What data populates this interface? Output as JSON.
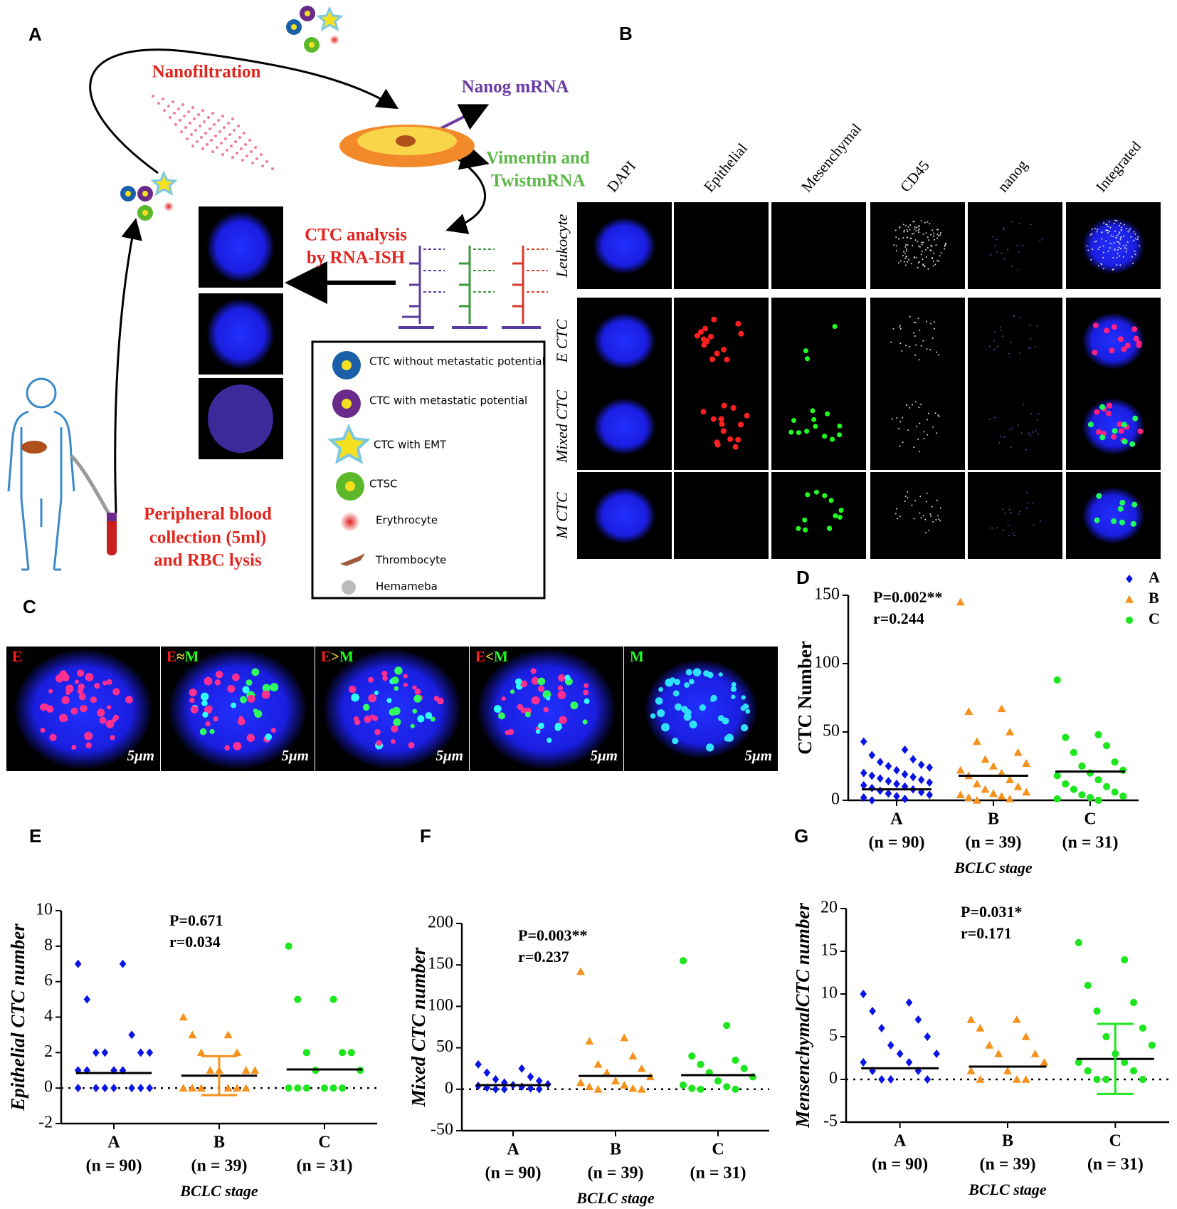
{
  "panel_labels": [
    "A",
    "B",
    "C",
    "D",
    "E",
    "F",
    "G"
  ],
  "panel_a": {
    "nanofiltration": "Nanofiltration",
    "nanog": "Nanog mRNA",
    "vimentin": [
      "Vimentin and",
      "TwistmRNA"
    ],
    "ctc_analysis": [
      "CTC analysis",
      "by RNA-ISH"
    ],
    "blood": [
      "Peripheral blood",
      "collection (5ml)",
      "and RBC lysis"
    ],
    "legend": [
      "CTC without metastatic potential",
      "CTC with metastatic potential",
      "CTC with EMT",
      "CTSC",
      "Erythrocyte",
      "Thrombocyte",
      "Hemameba"
    ]
  },
  "panel_b": {
    "columns": [
      "DAPI",
      "Epithelial",
      "Mesenchymal",
      "CD45",
      "nanog",
      "Integrated"
    ],
    "rows": [
      "Leukocyte",
      "E CTC",
      "Mixed CTC",
      "M CTC"
    ]
  },
  "panel_c": {
    "labels": [
      [
        "E"
      ],
      [
        "E",
        "≈",
        "M"
      ],
      [
        "E",
        ">",
        "M"
      ],
      [
        "E",
        "<",
        "M"
      ],
      [
        "M"
      ]
    ],
    "scale": "5μm"
  },
  "chart_data": [
    {
      "type": "strip",
      "ylabel": "CTC Number",
      "xlabel": "BCLC stage",
      "categories": [
        "A",
        "B",
        "C"
      ],
      "category_sublabels": [
        "(n = 90)",
        "(n = 39)",
        "(n = 31)"
      ],
      "annotation": [
        "P=0.002**",
        "r=0.244"
      ],
      "ylim": [
        0,
        150
      ],
      "yticks": [
        0,
        50,
        100,
        150
      ],
      "legend": true,
      "legend_position": "upper right",
      "zero_line": false,
      "series": [
        {
          "name": "A",
          "color": "#0a14e6",
          "marker": "diamond",
          "mean": 8,
          "values": [
            43,
            37,
            33,
            30,
            28,
            26,
            25,
            24,
            22,
            20,
            19,
            18,
            17,
            16,
            15,
            14,
            13,
            12,
            11,
            10,
            9,
            8,
            7,
            6,
            5,
            4,
            3,
            2,
            1,
            0
          ]
        },
        {
          "name": "B",
          "color": "#f5921e",
          "marker": "triangle",
          "mean": 18,
          "values": [
            145,
            67,
            65,
            50,
            43,
            35,
            30,
            27,
            25,
            22,
            20,
            18,
            15,
            12,
            10,
            8,
            6,
            5,
            4,
            3,
            2,
            1,
            0
          ]
        },
        {
          "name": "C",
          "color": "#1ee61e",
          "marker": "circle",
          "mean": 21,
          "values": [
            88,
            48,
            46,
            40,
            35,
            28,
            25,
            22,
            20,
            18,
            15,
            12,
            10,
            8,
            6,
            4,
            3,
            2,
            1,
            0
          ]
        }
      ]
    },
    {
      "type": "strip",
      "ylabel": "Epithelial CTC number",
      "xlabel": "BCLC stage",
      "categories": [
        "A",
        "B",
        "C"
      ],
      "category_sublabels": [
        "(n = 90)",
        "(n = 39)",
        "(n = 31)"
      ],
      "annotation": [
        "P=0.671",
        "r=0.034"
      ],
      "ylim": [
        -2,
        10
      ],
      "yticks": [
        -2,
        0,
        2,
        4,
        6,
        8,
        10
      ],
      "legend": false,
      "zero_line": true,
      "series": [
        {
          "name": "A",
          "color": "#0a14e6",
          "marker": "diamond",
          "mean": 0.85,
          "values": [
            7,
            7,
            5,
            3,
            2,
            2,
            2,
            2,
            1,
            1,
            1,
            1,
            0,
            0,
            0,
            0,
            0,
            0,
            0
          ]
        },
        {
          "name": "B",
          "color": "#f5921e",
          "marker": "triangle",
          "mean": 0.7,
          "sd": 1.1,
          "values": [
            4,
            3,
            3,
            2,
            2,
            1,
            1,
            1,
            1,
            0,
            0,
            0,
            0,
            0,
            0
          ]
        },
        {
          "name": "C",
          "color": "#1ee61e",
          "marker": "circle",
          "mean": 1.05,
          "values": [
            8,
            5,
            5,
            2,
            2,
            2,
            1,
            1,
            0,
            0,
            0,
            0,
            0,
            0
          ]
        }
      ]
    },
    {
      "type": "strip",
      "ylabel": "Mixed CTC number",
      "xlabel": "BCLC stage",
      "categories": [
        "A",
        "B",
        "C"
      ],
      "category_sublabels": [
        "(n = 90)",
        "(n = 39)",
        "(n = 31)"
      ],
      "annotation": [
        "P=0.003**",
        "r=0.237"
      ],
      "ylim": [
        -50,
        200
      ],
      "yticks": [
        -50,
        0,
        50,
        100,
        150,
        200
      ],
      "legend": false,
      "zero_line": true,
      "series": [
        {
          "name": "A",
          "color": "#0a14e6",
          "marker": "diamond",
          "mean": 5,
          "values": [
            30,
            25,
            20,
            15,
            12,
            10,
            8,
            6,
            5,
            4,
            3,
            2,
            1,
            0,
            0,
            0
          ]
        },
        {
          "name": "B",
          "color": "#f5921e",
          "marker": "triangle",
          "mean": 16,
          "values": [
            142,
            62,
            58,
            40,
            30,
            25,
            20,
            15,
            10,
            8,
            5,
            3,
            1,
            0,
            0
          ]
        },
        {
          "name": "C",
          "color": "#1ee61e",
          "marker": "circle",
          "mean": 17,
          "values": [
            155,
            77,
            40,
            35,
            30,
            25,
            20,
            15,
            10,
            5,
            3,
            1,
            0,
            0
          ]
        }
      ]
    },
    {
      "type": "strip",
      "ylabel": "MensenchymalCTC number",
      "xlabel": "BCLC stage",
      "categories": [
        "A",
        "B",
        "C"
      ],
      "category_sublabels": [
        "(n = 90)",
        "(n = 39)",
        "(n = 31)"
      ],
      "annotation": [
        "P=0.031*",
        "r=0.171"
      ],
      "ylim": [
        -5,
        20
      ],
      "yticks": [
        -5,
        0,
        5,
        10,
        15,
        20
      ],
      "legend": false,
      "zero_line": true,
      "series": [
        {
          "name": "A",
          "color": "#0a14e6",
          "marker": "diamond",
          "mean": 1.3,
          "values": [
            10,
            9,
            8,
            7,
            6,
            5,
            4,
            3,
            3,
            2,
            2,
            1,
            1,
            0,
            0,
            0
          ]
        },
        {
          "name": "B",
          "color": "#f5921e",
          "marker": "triangle",
          "mean": 1.5,
          "values": [
            7,
            7,
            6,
            5,
            4,
            3,
            3,
            2,
            1,
            1,
            0,
            0,
            0
          ]
        },
        {
          "name": "C",
          "color": "#1ee61e",
          "marker": "circle",
          "mean": 2.4,
          "sd": 4.1,
          "values": [
            16,
            14,
            11,
            9,
            8,
            6,
            5,
            4,
            3,
            2,
            2,
            1,
            1,
            0,
            0,
            0
          ]
        }
      ]
    }
  ]
}
